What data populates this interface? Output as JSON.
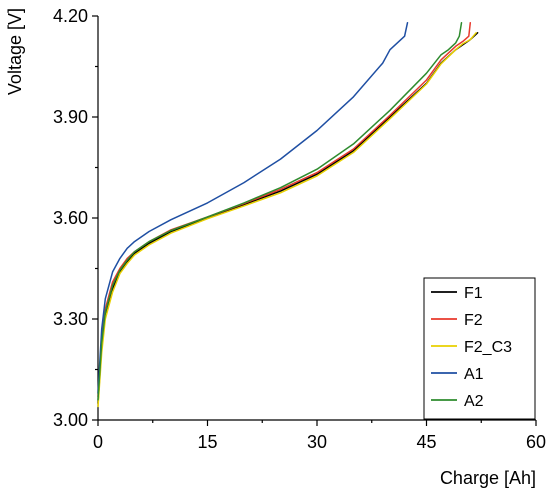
{
  "chart_data": {
    "type": "line",
    "title": "",
    "xlabel": "Charge [Ah]",
    "ylabel": "Voltage [V]",
    "xlim": [
      0,
      60
    ],
    "ylim": [
      3.0,
      4.2
    ],
    "x_ticks": [
      0,
      15,
      30,
      45,
      60
    ],
    "x_tick_labels": [
      "0",
      "15",
      "30",
      "45",
      "60"
    ],
    "y_ticks": [
      3.0,
      3.3,
      3.6,
      3.9,
      4.2
    ],
    "y_tick_labels": [
      "3.00",
      "3.30",
      "3.60",
      "3.90",
      "4.20"
    ],
    "grid": false,
    "legend_position": "bottom-right",
    "series": [
      {
        "name": "F1",
        "color": "#000000",
        "points": [
          [
            0,
            3.05
          ],
          [
            0.5,
            3.22
          ],
          [
            1,
            3.31
          ],
          [
            2,
            3.39
          ],
          [
            3,
            3.44
          ],
          [
            4,
            3.47
          ],
          [
            5,
            3.495
          ],
          [
            7,
            3.525
          ],
          [
            10,
            3.56
          ],
          [
            15,
            3.6
          ],
          [
            20,
            3.64
          ],
          [
            25,
            3.68
          ],
          [
            30,
            3.73
          ],
          [
            35,
            3.8
          ],
          [
            40,
            3.9
          ],
          [
            45,
            4.0
          ],
          [
            47,
            4.06
          ],
          [
            49,
            4.1
          ],
          [
            50,
            4.115
          ],
          [
            51,
            4.13
          ],
          [
            52,
            4.15
          ]
        ]
      },
      {
        "name": "F2",
        "color": "#e8382c",
        "points": [
          [
            0,
            3.07
          ],
          [
            0.5,
            3.24
          ],
          [
            1,
            3.33
          ],
          [
            2,
            3.41
          ],
          [
            3,
            3.45
          ],
          [
            4,
            3.48
          ],
          [
            5,
            3.5
          ],
          [
            7,
            3.53
          ],
          [
            10,
            3.565
          ],
          [
            15,
            3.603
          ],
          [
            20,
            3.643
          ],
          [
            25,
            3.685
          ],
          [
            30,
            3.735
          ],
          [
            35,
            3.805
          ],
          [
            40,
            3.905
          ],
          [
            45,
            4.01
          ],
          [
            47,
            4.07
          ],
          [
            49,
            4.11
          ],
          [
            50,
            4.125
          ],
          [
            50.8,
            4.14
          ],
          [
            51,
            4.18
          ]
        ]
      },
      {
        "name": "F2_C3",
        "color": "#e8d000",
        "points": [
          [
            0,
            3.04
          ],
          [
            0.5,
            3.2
          ],
          [
            1,
            3.3
          ],
          [
            2,
            3.38
          ],
          [
            3,
            3.435
          ],
          [
            4,
            3.465
          ],
          [
            5,
            3.49
          ],
          [
            7,
            3.52
          ],
          [
            10,
            3.555
          ],
          [
            15,
            3.598
          ],
          [
            20,
            3.636
          ],
          [
            25,
            3.675
          ],
          [
            30,
            3.725
          ],
          [
            35,
            3.795
          ],
          [
            40,
            3.895
          ],
          [
            45,
            3.998
          ],
          [
            47,
            4.058
          ],
          [
            49,
            4.1
          ],
          [
            50,
            4.118
          ],
          [
            51,
            4.13
          ],
          [
            51.8,
            4.15
          ]
        ]
      },
      {
        "name": "A1",
        "color": "#1f4fa3",
        "points": [
          [
            0,
            3.08
          ],
          [
            0.5,
            3.27
          ],
          [
            1,
            3.36
          ],
          [
            2,
            3.44
          ],
          [
            3,
            3.48
          ],
          [
            4,
            3.51
          ],
          [
            5,
            3.53
          ],
          [
            7,
            3.56
          ],
          [
            10,
            3.595
          ],
          [
            15,
            3.645
          ],
          [
            20,
            3.705
          ],
          [
            25,
            3.775
          ],
          [
            30,
            3.86
          ],
          [
            35,
            3.96
          ],
          [
            39,
            4.06
          ],
          [
            40,
            4.1
          ],
          [
            41,
            4.12
          ],
          [
            42,
            4.14
          ],
          [
            42.4,
            4.18
          ]
        ]
      },
      {
        "name": "A2",
        "color": "#2e8b2e",
        "points": [
          [
            0,
            3.06
          ],
          [
            0.5,
            3.23
          ],
          [
            1,
            3.32
          ],
          [
            2,
            3.4
          ],
          [
            3,
            3.445
          ],
          [
            4,
            3.475
          ],
          [
            5,
            3.5
          ],
          [
            7,
            3.53
          ],
          [
            10,
            3.563
          ],
          [
            15,
            3.603
          ],
          [
            20,
            3.645
          ],
          [
            25,
            3.69
          ],
          [
            30,
            3.745
          ],
          [
            35,
            3.82
          ],
          [
            40,
            3.92
          ],
          [
            45,
            4.03
          ],
          [
            47,
            4.085
          ],
          [
            48,
            4.1
          ],
          [
            49,
            4.12
          ],
          [
            49.5,
            4.14
          ],
          [
            49.8,
            4.18
          ]
        ]
      }
    ]
  }
}
